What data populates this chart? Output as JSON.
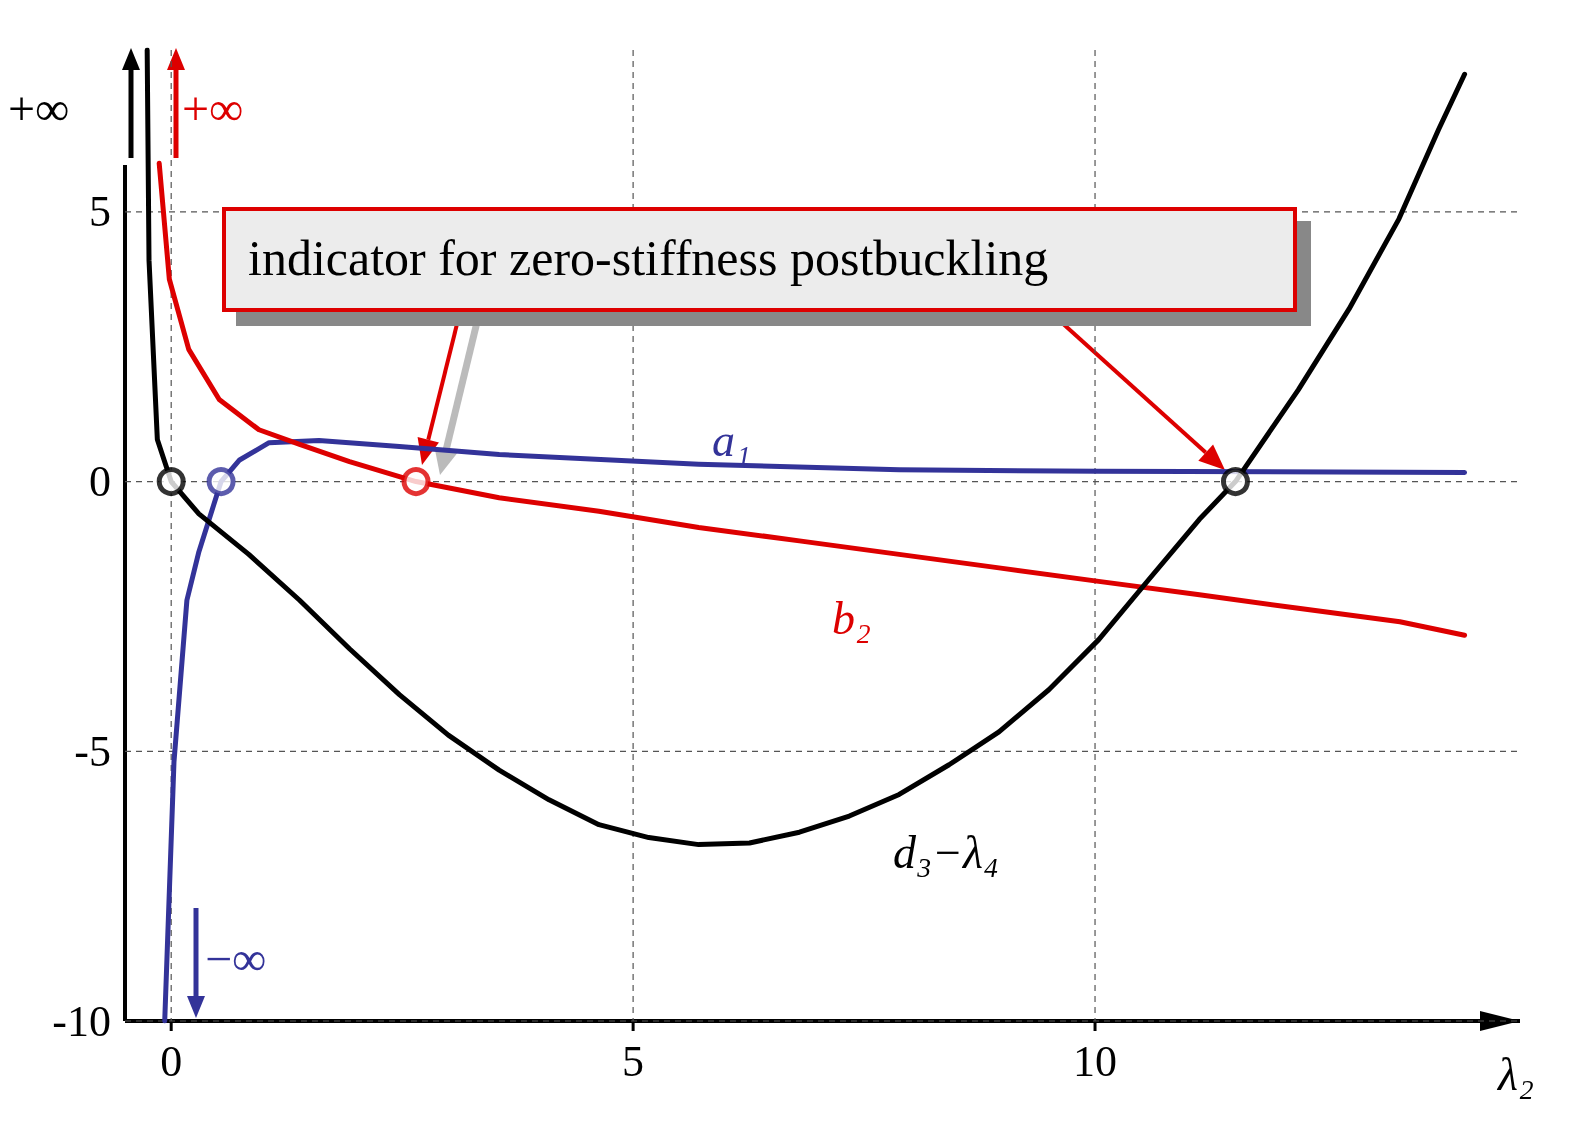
{
  "chart_data": {
    "type": "line",
    "xlabel": "λ₂",
    "xlim": [
      -0.5,
      14.6
    ],
    "ylim": [
      -10,
      8
    ],
    "xticks": [
      0,
      5,
      10
    ],
    "yticks": [
      -10,
      -5,
      0,
      5
    ],
    "grid": true,
    "legend": false,
    "marker": "none",
    "line_style": "solid",
    "annotations": [
      "−∞",
      "+∞",
      "+∞",
      "indicator for zero-stiffness postbuckling"
    ],
    "series": [
      {
        "name": "a₁",
        "color": "#333399",
        "x": [
          -0.07,
          0.03,
          0.17,
          0.3,
          0.54,
          0.74,
          1.06,
          1.6,
          2.47,
          3.55,
          5.71,
          7.88,
          10.04,
          14.0
        ],
        "values": [
          -10,
          -5.2,
          -2.2,
          -1.3,
          0,
          0.4,
          0.72,
          0.76,
          0.65,
          0.5,
          0.32,
          0.22,
          0.19,
          0.17
        ]
      },
      {
        "name": "b₂",
        "color": "#dd0000",
        "x": [
          -0.13,
          -0.02,
          0.19,
          0.52,
          0.95,
          1.39,
          1.93,
          2.65,
          3.55,
          4.63,
          5.71,
          6.8,
          7.88,
          8.96,
          10.04,
          11.13,
          12.2,
          13.3,
          14.0
        ],
        "values": [
          5.9,
          3.75,
          2.45,
          1.52,
          0.96,
          0.69,
          0.37,
          0,
          -0.3,
          -0.55,
          -0.85,
          -1.1,
          -1.35,
          -1.6,
          -1.85,
          -2.1,
          -2.35,
          -2.6,
          -2.85
        ]
      },
      {
        "name": "d₃−λ₄",
        "color": "#000000",
        "x": [
          -0.26,
          -0.24,
          -0.15,
          0,
          0.3,
          0.84,
          1.39,
          1.93,
          2.47,
          3.0,
          3.55,
          4.09,
          4.63,
          5.17,
          5.71,
          6.26,
          6.8,
          7.34,
          7.88,
          8.42,
          8.96,
          9.5,
          10.04,
          10.58,
          11.13,
          11.52,
          12.2,
          12.75,
          13.29,
          13.72,
          14.0
        ],
        "values": [
          8,
          4.1,
          0.78,
          0,
          -0.6,
          -1.35,
          -2.2,
          -3.1,
          -3.95,
          -4.7,
          -5.35,
          -5.9,
          -6.36,
          -6.6,
          -6.73,
          -6.7,
          -6.5,
          -6.2,
          -5.8,
          -5.25,
          -4.64,
          -3.86,
          -2.93,
          -1.82,
          -0.7,
          0,
          1.7,
          3.2,
          4.87,
          6.53,
          7.55
        ]
      },
      {
        "type": "scatter",
        "color": "#333399",
        "marker": "circle",
        "x": [
          0.54
        ],
        "values": [
          0
        ]
      },
      {
        "type": "scatter",
        "color": "#dd0000",
        "marker": "circle",
        "x": [
          2.65
        ],
        "values": [
          0
        ]
      },
      {
        "type": "scatter",
        "color": "#000000",
        "marker": "circle",
        "x": [
          0,
          11.52
        ],
        "values": [
          0,
          0
        ]
      }
    ]
  }
}
